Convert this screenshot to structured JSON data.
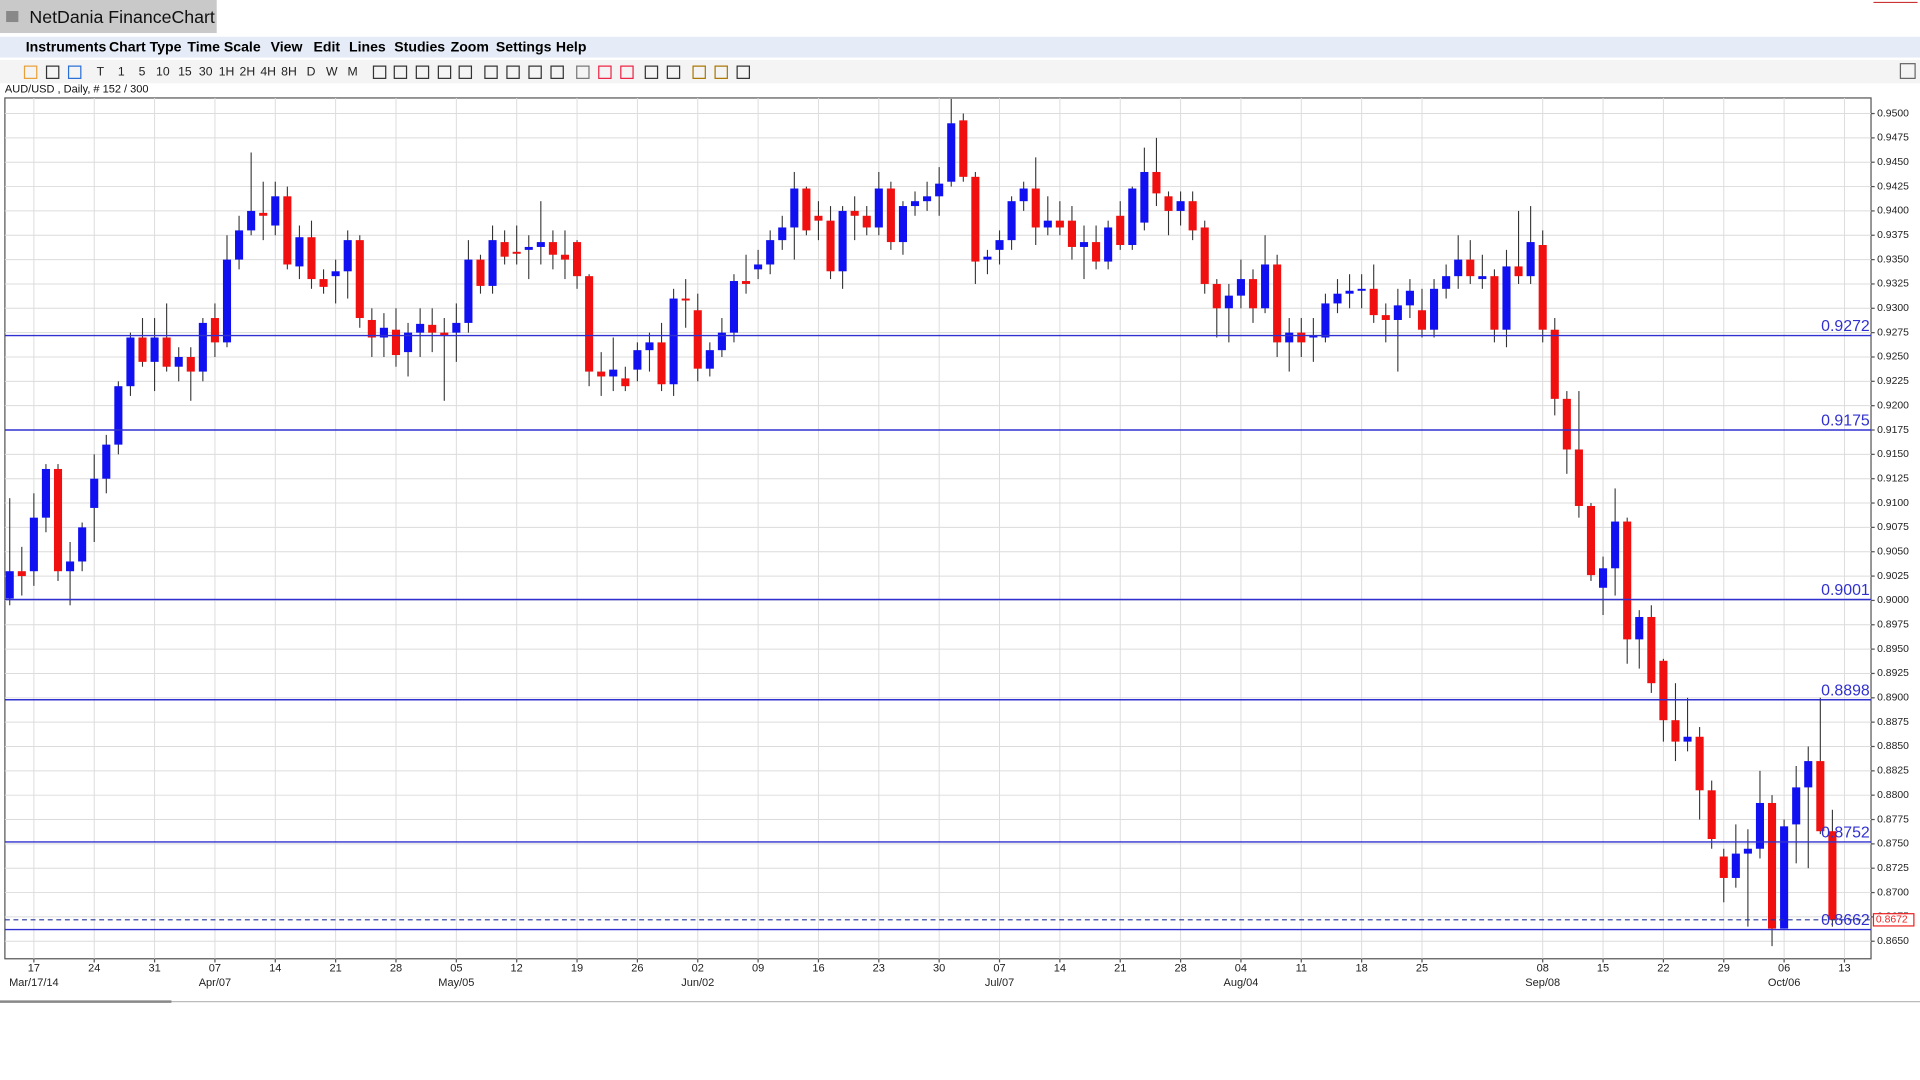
{
  "ui": {
    "app_title": "NetDania FinanceChart",
    "menu": [
      "Instruments",
      "Chart Type",
      "Time Scale",
      "View",
      "Edit",
      "Lines",
      "Studies",
      "Zoom",
      "Settings",
      "Help"
    ],
    "toolbar": [
      "T",
      "1",
      "5",
      "10",
      "15",
      "30",
      "1H",
      "2H",
      "4H",
      "8H",
      "D",
      "W",
      "M"
    ]
  },
  "chart_data": {
    "type": "candlestick",
    "title": "AUD/USD , Daily, # 152 / 300",
    "up_color": "#1010f0",
    "down_color": "#f01010",
    "grid": true,
    "xlim": [
      -0.4,
      154.2
    ],
    "ylim": [
      0.8632,
      0.9516
    ],
    "open": [
      0.9002,
      0.903,
      0.903,
      0.9085,
      0.9135,
      0.903,
      0.904,
      0.9095,
      0.9125,
      0.916,
      0.922,
      0.927,
      0.9245,
      0.927,
      0.924,
      0.925,
      0.9235,
      0.929,
      0.9265,
      0.935,
      0.938,
      0.9398,
      0.9385,
      0.9415,
      0.9343,
      0.9373,
      0.933,
      0.9333,
      0.9338,
      0.937,
      0.9288,
      0.927,
      0.9278,
      0.9255,
      0.9275,
      0.9283,
      0.9275,
      0.9275,
      0.9285,
      0.935,
      0.9323,
      0.9368,
      0.9358,
      0.936,
      0.9363,
      0.9368,
      0.9355,
      0.9368,
      0.9333,
      0.9235,
      0.923,
      0.9228,
      0.9237,
      0.9257,
      0.9265,
      0.9222,
      0.931,
      0.9298,
      0.9238,
      0.9257,
      0.9275,
      0.9328,
      0.934,
      0.9345,
      0.937,
      0.9383,
      0.9423,
      0.9395,
      0.939,
      0.9338,
      0.94,
      0.9395,
      0.9383,
      0.9423,
      0.9368,
      0.9405,
      0.941,
      0.9415,
      0.943,
      0.9493,
      0.9435,
      0.935,
      0.936,
      0.937,
      0.941,
      0.9423,
      0.9383,
      0.939,
      0.939,
      0.9363,
      0.9368,
      0.9348,
      0.9395,
      0.9365,
      0.9388,
      0.944,
      0.9415,
      0.94,
      0.941,
      0.9383,
      0.9325,
      0.93,
      0.9313,
      0.933,
      0.93,
      0.9345,
      0.9265,
      0.9275,
      0.927,
      0.927,
      0.9305,
      0.9315,
      0.9318,
      0.932,
      0.9293,
      0.9288,
      0.9303,
      0.9298,
      0.9278,
      0.932,
      0.9333,
      0.935,
      0.933,
      0.9333,
      0.9278,
      0.9343,
      0.9333,
      0.9365,
      0.9278,
      0.9207,
      0.9155,
      0.9097,
      0.9013,
      0.9033,
      0.9081,
      0.896,
      0.8983,
      0.8938,
      0.8877,
      0.8855,
      0.886,
      0.8805,
      0.8737,
      0.8715,
      0.874,
      0.8745,
      0.8792,
      0.8663,
      0.877,
      0.8808,
      0.8835,
      0.8763
    ],
    "high": [
      0.9105,
      0.9055,
      0.911,
      0.914,
      0.914,
      0.906,
      0.908,
      0.915,
      0.917,
      0.9225,
      0.9275,
      0.929,
      0.929,
      0.9305,
      0.926,
      0.926,
      0.929,
      0.9305,
      0.9375,
      0.9395,
      0.946,
      0.943,
      0.943,
      0.9425,
      0.9385,
      0.939,
      0.934,
      0.935,
      0.938,
      0.9375,
      0.93,
      0.9295,
      0.93,
      0.9285,
      0.93,
      0.93,
      0.929,
      0.9305,
      0.937,
      0.9355,
      0.9385,
      0.938,
      0.9385,
      0.9375,
      0.941,
      0.938,
      0.938,
      0.937,
      0.9335,
      0.9255,
      0.927,
      0.924,
      0.9265,
      0.9275,
      0.9285,
      0.932,
      0.933,
      0.9315,
      0.9265,
      0.929,
      0.9335,
      0.9355,
      0.936,
      0.938,
      0.9395,
      0.944,
      0.9425,
      0.941,
      0.9405,
      0.9405,
      0.9415,
      0.9405,
      0.944,
      0.943,
      0.941,
      0.942,
      0.943,
      0.9445,
      0.9515,
      0.95,
      0.944,
      0.936,
      0.938,
      0.9415,
      0.943,
      0.9455,
      0.9415,
      0.941,
      0.9405,
      0.9385,
      0.9385,
      0.939,
      0.941,
      0.9425,
      0.9465,
      0.9475,
      0.942,
      0.942,
      0.942,
      0.939,
      0.933,
      0.9325,
      0.935,
      0.934,
      0.9375,
      0.9355,
      0.929,
      0.929,
      0.929,
      0.9315,
      0.933,
      0.9335,
      0.9335,
      0.9345,
      0.9305,
      0.932,
      0.933,
      0.932,
      0.933,
      0.9345,
      0.9375,
      0.937,
      0.9355,
      0.934,
      0.936,
      0.94,
      0.9405,
      0.938,
      0.929,
      0.9215,
      0.9215,
      0.91,
      0.9045,
      0.9115,
      0.9085,
      0.899,
      0.8995,
      0.894,
      0.8915,
      0.89,
      0.887,
      0.8815,
      0.8745,
      0.877,
      0.8765,
      0.8825,
      0.88,
      0.8775,
      0.883,
      0.885,
      0.89,
      0.8785
    ],
    "low": [
      0.8995,
      0.9005,
      0.9015,
      0.907,
      0.902,
      0.8995,
      0.903,
      0.906,
      0.911,
      0.915,
      0.921,
      0.924,
      0.9215,
      0.9235,
      0.9225,
      0.9205,
      0.9225,
      0.925,
      0.926,
      0.934,
      0.9375,
      0.937,
      0.9375,
      0.934,
      0.933,
      0.932,
      0.9315,
      0.9305,
      0.931,
      0.928,
      0.925,
      0.925,
      0.924,
      0.923,
      0.925,
      0.9255,
      0.9205,
      0.9245,
      0.9275,
      0.9315,
      0.9315,
      0.9345,
      0.9345,
      0.933,
      0.9345,
      0.934,
      0.933,
      0.932,
      0.922,
      0.921,
      0.9215,
      0.9215,
      0.9225,
      0.9235,
      0.9215,
      0.921,
      0.928,
      0.9225,
      0.923,
      0.925,
      0.9265,
      0.9315,
      0.933,
      0.9335,
      0.936,
      0.935,
      0.9375,
      0.937,
      0.933,
      0.932,
      0.937,
      0.9375,
      0.9375,
      0.936,
      0.9355,
      0.9395,
      0.94,
      0.9395,
      0.9425,
      0.943,
      0.9325,
      0.9335,
      0.9345,
      0.936,
      0.94,
      0.9365,
      0.9375,
      0.9375,
      0.935,
      0.933,
      0.934,
      0.934,
      0.936,
      0.936,
      0.938,
      0.9405,
      0.9375,
      0.9385,
      0.937,
      0.9315,
      0.927,
      0.9265,
      0.93,
      0.9285,
      0.9295,
      0.925,
      0.9235,
      0.925,
      0.9245,
      0.9265,
      0.9295,
      0.93,
      0.93,
      0.9285,
      0.9265,
      0.9235,
      0.929,
      0.927,
      0.927,
      0.931,
      0.932,
      0.9325,
      0.932,
      0.9265,
      0.926,
      0.9325,
      0.9325,
      0.9265,
      0.919,
      0.913,
      0.9085,
      0.902,
      0.8985,
      0.9005,
      0.8935,
      0.893,
      0.8905,
      0.8855,
      0.8835,
      0.8845,
      0.8775,
      0.8745,
      0.869,
      0.8705,
      0.8665,
      0.8735,
      0.8645,
      0.8665,
      0.873,
      0.8725,
      0.876,
      0.8665
    ],
    "close": [
      0.903,
      0.9025,
      0.9085,
      0.9135,
      0.903,
      0.904,
      0.9075,
      0.9125,
      0.916,
      0.922,
      0.927,
      0.9245,
      0.927,
      0.924,
      0.925,
      0.9235,
      0.9285,
      0.9265,
      0.935,
      0.938,
      0.94,
      0.9395,
      0.9415,
      0.9345,
      0.9373,
      0.933,
      0.9322,
      0.9338,
      0.937,
      0.929,
      0.927,
      0.928,
      0.9252,
      0.9275,
      0.9284,
      0.9275,
      0.9272,
      0.9285,
      0.935,
      0.9323,
      0.937,
      0.9353,
      0.9356,
      0.9363,
      0.9368,
      0.9355,
      0.935,
      0.9333,
      0.9235,
      0.923,
      0.9237,
      0.922,
      0.9257,
      0.9265,
      0.9222,
      0.931,
      0.9308,
      0.9238,
      0.9257,
      0.9275,
      0.9328,
      0.9325,
      0.9345,
      0.937,
      0.9383,
      0.9423,
      0.938,
      0.939,
      0.9338,
      0.94,
      0.9395,
      0.9383,
      0.9423,
      0.9368,
      0.9405,
      0.941,
      0.9415,
      0.9428,
      0.949,
      0.9435,
      0.9348,
      0.9353,
      0.937,
      0.941,
      0.9423,
      0.9383,
      0.939,
      0.9383,
      0.9363,
      0.9368,
      0.9348,
      0.9383,
      0.9365,
      0.9423,
      0.944,
      0.9418,
      0.94,
      0.941,
      0.938,
      0.9325,
      0.93,
      0.9313,
      0.933,
      0.93,
      0.9345,
      0.9265,
      0.9275,
      0.9265,
      0.9272,
      0.9305,
      0.9315,
      0.9318,
      0.932,
      0.9293,
      0.9288,
      0.9303,
      0.9318,
      0.9278,
      0.932,
      0.9333,
      0.935,
      0.9333,
      0.9333,
      0.9278,
      0.9343,
      0.9333,
      0.9368,
      0.9278,
      0.9207,
      0.9155,
      0.9097,
      0.9026,
      0.9033,
      0.9081,
      0.896,
      0.8983,
      0.8915,
      0.8877,
      0.8855,
      0.886,
      0.8805,
      0.8755,
      0.8715,
      0.874,
      0.8745,
      0.8792,
      0.8663,
      0.8768,
      0.8808,
      0.8835,
      0.8763,
      0.8672
    ],
    "yticks": [
      {
        "value": 0.865,
        "label": "0.8650"
      },
      {
        "value": 0.8675,
        "label": "0.8675"
      },
      {
        "value": 0.87,
        "label": "0.8700"
      },
      {
        "value": 0.8725,
        "label": "0.8725"
      },
      {
        "value": 0.875,
        "label": "0.8750"
      },
      {
        "value": 0.8775,
        "label": "0.8775"
      },
      {
        "value": 0.88,
        "label": "0.8800"
      },
      {
        "value": 0.8825,
        "label": "0.8825"
      },
      {
        "value": 0.885,
        "label": "0.8850"
      },
      {
        "value": 0.8875,
        "label": "0.8875"
      },
      {
        "value": 0.89,
        "label": "0.8900"
      },
      {
        "value": 0.8925,
        "label": "0.8925"
      },
      {
        "value": 0.895,
        "label": "0.8950"
      },
      {
        "value": 0.8975,
        "label": "0.8975"
      },
      {
        "value": 0.9,
        "label": "0.9000"
      },
      {
        "value": 0.9025,
        "label": "0.9025"
      },
      {
        "value": 0.905,
        "label": "0.9050"
      },
      {
        "value": 0.9075,
        "label": "0.9075"
      },
      {
        "value": 0.91,
        "label": "0.9100"
      },
      {
        "value": 0.9125,
        "label": "0.9125"
      },
      {
        "value": 0.915,
        "label": "0.9150"
      },
      {
        "value": 0.9175,
        "label": "0.9175"
      },
      {
        "value": 0.92,
        "label": "0.9200"
      },
      {
        "value": 0.9225,
        "label": "0.9225"
      },
      {
        "value": 0.925,
        "label": "0.9250"
      },
      {
        "value": 0.9275,
        "label": "0.9275"
      },
      {
        "value": 0.93,
        "label": "0.9300"
      },
      {
        "value": 0.9325,
        "label": "0.9325"
      },
      {
        "value": 0.935,
        "label": "0.9350"
      },
      {
        "value": 0.9375,
        "label": "0.9375"
      },
      {
        "value": 0.94,
        "label": "0.9400"
      },
      {
        "value": 0.9425,
        "label": "0.9425"
      },
      {
        "value": 0.945,
        "label": "0.9450"
      },
      {
        "value": 0.9475,
        "label": "0.9475"
      },
      {
        "value": 0.95,
        "label": "0.9500"
      }
    ],
    "xticks": [
      {
        "value": 2,
        "label": "17"
      },
      {
        "value": 7,
        "label": "24"
      },
      {
        "value": 12,
        "label": "31"
      },
      {
        "value": 17,
        "label": "07"
      },
      {
        "value": 22,
        "label": "14"
      },
      {
        "value": 27,
        "label": "21"
      },
      {
        "value": 32,
        "label": "28"
      },
      {
        "value": 37,
        "label": "05"
      },
      {
        "value": 42,
        "label": "12"
      },
      {
        "value": 47,
        "label": "19"
      },
      {
        "value": 52,
        "label": "26"
      },
      {
        "value": 57,
        "label": "02"
      },
      {
        "value": 62,
        "label": "09"
      },
      {
        "value": 67,
        "label": "16"
      },
      {
        "value": 72,
        "label": "23"
      },
      {
        "value": 77,
        "label": "30"
      },
      {
        "value": 82,
        "label": "07"
      },
      {
        "value": 87,
        "label": "14"
      },
      {
        "value": 92,
        "label": "21"
      },
      {
        "value": 97,
        "label": "28"
      },
      {
        "value": 102,
        "label": "04"
      },
      {
        "value": 107,
        "label": "11"
      },
      {
        "value": 112,
        "label": "18"
      },
      {
        "value": 117,
        "label": "25"
      },
      {
        "value": 127,
        "label": "08"
      },
      {
        "value": 132,
        "label": "15"
      },
      {
        "value": 137,
        "label": "22"
      },
      {
        "value": 142,
        "label": "29"
      },
      {
        "value": 147,
        "label": "06"
      },
      {
        "value": 152,
        "label": "13"
      }
    ],
    "xticks2": [
      {
        "value": 2,
        "label": "Mar/17/14"
      },
      {
        "value": 17,
        "label": "Apr/07"
      },
      {
        "value": 37,
        "label": "May/05"
      },
      {
        "value": 57,
        "label": "Jun/02"
      },
      {
        "value": 82,
        "label": "Jul/07"
      },
      {
        "value": 102,
        "label": "Aug/04"
      },
      {
        "value": 127,
        "label": "Sep/08"
      },
      {
        "value": 147,
        "label": "Oct/06"
      }
    ],
    "levels": [
      {
        "value": 0.9272,
        "label": "0.9272"
      },
      {
        "value": 0.9175,
        "label": "0.9175"
      },
      {
        "value": 0.9001,
        "label": "0.9001"
      },
      {
        "value": 0.8898,
        "label": "0.8898"
      },
      {
        "value": 0.8752,
        "label": "0.8752"
      },
      {
        "value": 0.8662,
        "label": "0.8662"
      }
    ],
    "level_color": "#3030d0",
    "last_price": {
      "value": 0.8672,
      "label": "0.8672"
    }
  }
}
